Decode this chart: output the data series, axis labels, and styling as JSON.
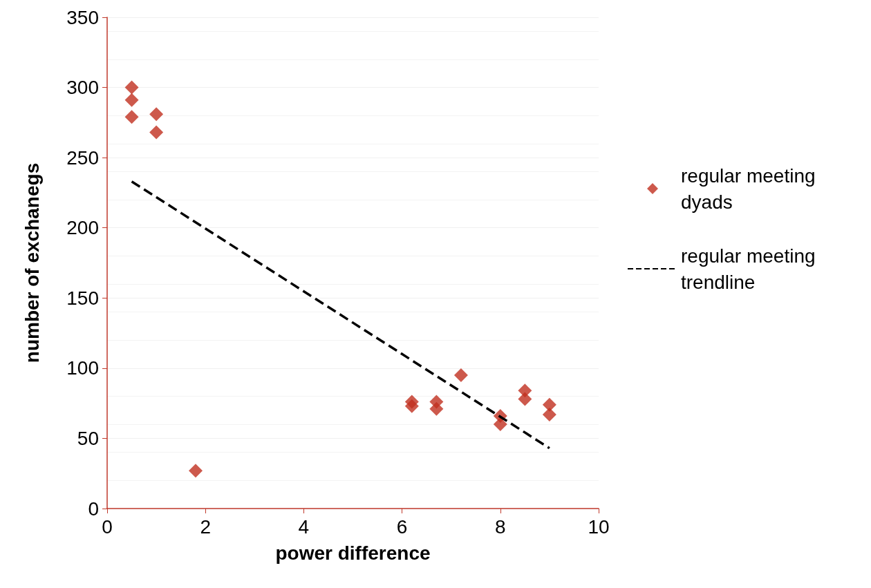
{
  "chart_data": {
    "type": "scatter",
    "xlabel": "power difference",
    "ylabel": "number of exchanegs",
    "xlim": [
      0,
      10
    ],
    "xticks": [
      0,
      2,
      4,
      6,
      8,
      10
    ],
    "ylim": [
      0,
      350
    ],
    "yticks": [
      0,
      50,
      100,
      150,
      200,
      250,
      300,
      350
    ],
    "grid": "y",
    "legend": "right",
    "marker": "diamond",
    "series": [
      {
        "name": "regular meeting dyads",
        "color": "#c0301f",
        "x": [
          0.5,
          0.5,
          0.5,
          1,
          1,
          1.8,
          6.2,
          6.2,
          6.7,
          6.7,
          7.2,
          8,
          8,
          8.5,
          8.5,
          9,
          9
        ],
        "values": [
          300,
          291,
          279,
          281,
          268,
          27,
          76,
          73,
          76,
          71,
          95,
          66,
          60,
          84,
          78,
          74,
          67
        ]
      },
      {
        "name": "regular meeting trendline",
        "type": "line",
        "color": "#000000",
        "line_style": "dashed",
        "marker": "none",
        "x": [
          0.5,
          9
        ],
        "values": [
          233,
          43
        ]
      }
    ]
  }
}
